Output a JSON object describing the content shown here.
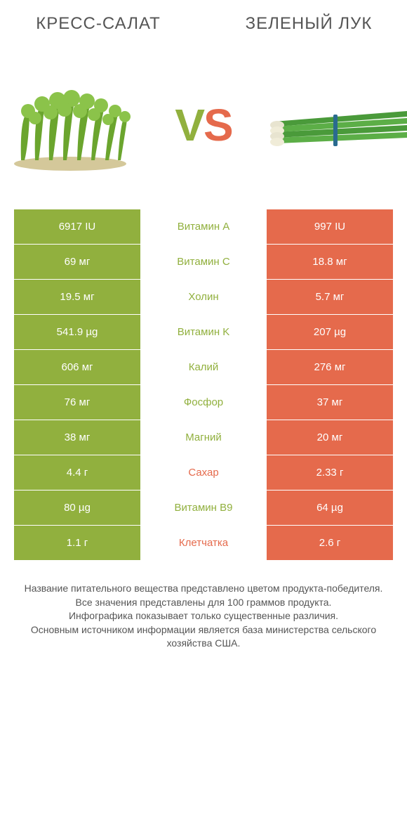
{
  "colors": {
    "left": "#91b03e",
    "right": "#e56a4c",
    "text": "#555555",
    "white": "#ffffff"
  },
  "header": {
    "left_title": "КРЕСС-САЛАТ",
    "right_title": "ЗЕЛЕНЫЙ ЛУК",
    "vs_v": "V",
    "vs_s": "S"
  },
  "rows": [
    {
      "left": "6917 IU",
      "mid": "Витамин A",
      "right": "997 IU",
      "winner": "left"
    },
    {
      "left": "69 мг",
      "mid": "Витамин C",
      "right": "18.8 мг",
      "winner": "left"
    },
    {
      "left": "19.5 мг",
      "mid": "Холин",
      "right": "5.7 мг",
      "winner": "left"
    },
    {
      "left": "541.9 µg",
      "mid": "Витамин K",
      "right": "207 µg",
      "winner": "left"
    },
    {
      "left": "606 мг",
      "mid": "Калий",
      "right": "276 мг",
      "winner": "left"
    },
    {
      "left": "76 мг",
      "mid": "Фосфор",
      "right": "37 мг",
      "winner": "left"
    },
    {
      "left": "38 мг",
      "mid": "Магний",
      "right": "20 мг",
      "winner": "left"
    },
    {
      "left": "4.4 г",
      "mid": "Сахар",
      "right": "2.33 г",
      "winner": "right"
    },
    {
      "left": "80 µg",
      "mid": "Витамин B9",
      "right": "64 µg",
      "winner": "left"
    },
    {
      "left": "1.1 г",
      "mid": "Клетчатка",
      "right": "2.6 г",
      "winner": "right"
    }
  ],
  "footer": {
    "line1": "Название питательного вещества представлено цветом продукта-победителя.",
    "line2": "Все значения представлены для 100 граммов продукта.",
    "line3": "Инфографика показывает только существенные различия.",
    "line4": "Основным источником информации является база министерства сельского хозяйства США."
  }
}
